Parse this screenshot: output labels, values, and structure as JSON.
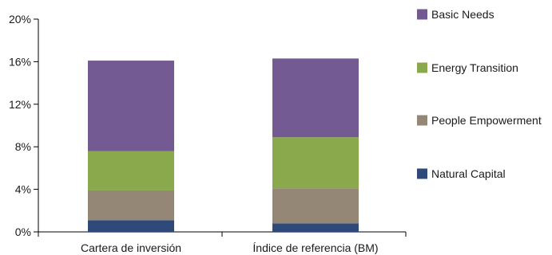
{
  "chart_data": {
    "type": "bar",
    "stacked": true,
    "categories": [
      "Cartera de inversión",
      "Índice de referencia (BM)"
    ],
    "series": [
      {
        "name": "Natural Capital",
        "color": "#2f4a7a",
        "values": [
          1.1,
          0.8
        ]
      },
      {
        "name": "People Empowerment",
        "color": "#948775",
        "values": [
          2.8,
          3.3
        ]
      },
      {
        "name": "Energy Transition",
        "color": "#8aa84c",
        "values": [
          3.7,
          4.8
        ]
      },
      {
        "name": "Basic Needs",
        "color": "#735a92",
        "values": [
          8.5,
          7.4
        ]
      }
    ],
    "ylim": [
      0,
      20
    ],
    "yticks": [
      0,
      4,
      8,
      12,
      16,
      20
    ],
    "ytick_labels": [
      "0%",
      "4%",
      "8%",
      "12%",
      "16%",
      "20%"
    ],
    "title": "",
    "xlabel": "",
    "ylabel": "",
    "grid": false,
    "legend_position": "right",
    "legend_order": [
      "Basic Needs",
      "Energy Transition",
      "People Empowerment",
      "Natural Capital"
    ]
  }
}
